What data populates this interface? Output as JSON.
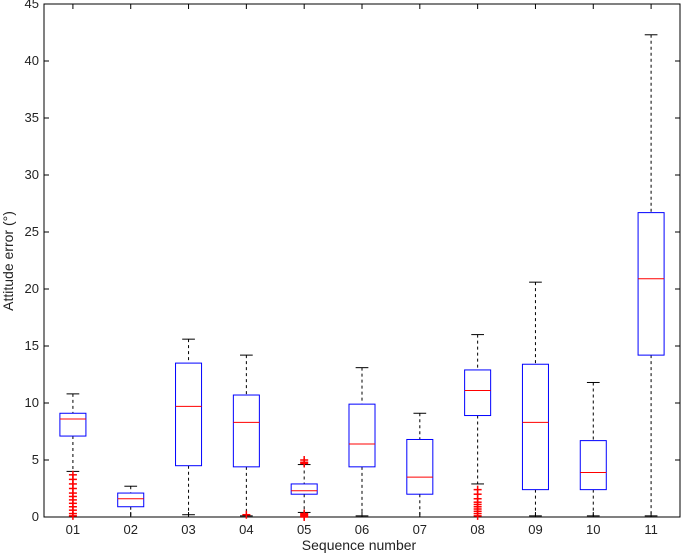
{
  "chart_data": {
    "type": "box",
    "xlabel": "Sequence number",
    "ylabel": "Attitude error (°)",
    "ylim": [
      0,
      45
    ],
    "yticks": [
      0,
      5,
      10,
      15,
      20,
      25,
      30,
      35,
      40,
      45
    ],
    "grid": false,
    "colors": {
      "box": "#0000ff",
      "median": "#ff0000",
      "whisker": "#000000",
      "outlier": "#ff0000"
    },
    "categories": [
      "01",
      "02",
      "03",
      "04",
      "05",
      "06",
      "07",
      "08",
      "09",
      "10",
      "11"
    ],
    "boxes": [
      {
        "label": "01",
        "whisker_low": 4.0,
        "q1": 7.1,
        "median": 8.6,
        "q3": 9.1,
        "whisker_high": 10.8,
        "outliers": [
          0.1,
          0.3,
          0.6,
          0.9,
          1.2,
          1.5,
          1.8,
          2.1,
          2.5,
          2.9,
          3.3,
          3.7
        ]
      },
      {
        "label": "02",
        "whisker_low": 0.0,
        "q1": 0.9,
        "median": 1.6,
        "q3": 2.1,
        "whisker_high": 2.7,
        "outliers": []
      },
      {
        "label": "03",
        "whisker_low": 0.2,
        "q1": 4.5,
        "median": 9.7,
        "q3": 13.5,
        "whisker_high": 15.6,
        "outliers": []
      },
      {
        "label": "04",
        "whisker_low": 0.1,
        "q1": 4.4,
        "median": 8.3,
        "q3": 10.7,
        "whisker_high": 14.2,
        "outliers": [
          0.2
        ]
      },
      {
        "label": "05",
        "whisker_low": 0.4,
        "q1": 2.0,
        "median": 2.3,
        "q3": 2.9,
        "whisker_high": 4.6,
        "outliers": [
          0.0,
          0.1,
          0.2,
          0.3,
          4.7,
          4.8,
          5.0
        ]
      },
      {
        "label": "06",
        "whisker_low": 0.1,
        "q1": 4.4,
        "median": 6.4,
        "q3": 9.9,
        "whisker_high": 13.1,
        "outliers": []
      },
      {
        "label": "07",
        "whisker_low": 0.0,
        "q1": 2.0,
        "median": 3.5,
        "q3": 6.8,
        "whisker_high": 9.1,
        "outliers": []
      },
      {
        "label": "08",
        "whisker_low": 2.9,
        "q1": 8.9,
        "median": 11.1,
        "q3": 12.9,
        "whisker_high": 16.0,
        "outliers": [
          0.1,
          0.3,
          0.5,
          0.7,
          0.9,
          1.1,
          1.3,
          1.6,
          2.0,
          2.4
        ]
      },
      {
        "label": "09",
        "whisker_low": 0.1,
        "q1": 2.4,
        "median": 8.3,
        "q3": 13.4,
        "whisker_high": 20.6,
        "outliers": []
      },
      {
        "label": "10",
        "whisker_low": 0.1,
        "q1": 2.4,
        "median": 3.9,
        "q3": 6.7,
        "whisker_high": 11.8,
        "outliers": []
      },
      {
        "label": "11",
        "whisker_low": 0.1,
        "q1": 14.2,
        "median": 20.9,
        "q3": 26.7,
        "whisker_high": 42.3,
        "outliers": []
      }
    ]
  }
}
